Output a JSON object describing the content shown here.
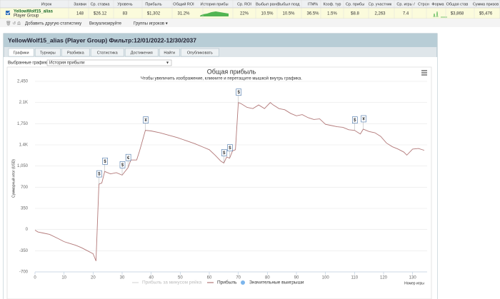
{
  "table": {
    "columns": [
      "Игрок",
      "Заявки",
      "Ср. ставка",
      "Уровень",
      "Прибыль",
      "Общий ROI",
      "История прибы",
      "Ср. ROI",
      "Выбыл рано",
      "Выбыл позд",
      "ITM%",
      "Коэф. тур",
      "Ср. прибы",
      "Ср. участник",
      "Ср. игры /",
      "Стран",
      "Форма",
      "Общая став",
      "Сумма призов"
    ],
    "rows": [
      {
        "player": "YellowWolf15_alias",
        "group": "Player Group",
        "cells": [
          "148",
          "$26.12",
          "83",
          "$1,302",
          "31.2%",
          null,
          "22%",
          "10.5%",
          "10.5%",
          "36.5%",
          "1.5%",
          "$8.8",
          "2,263",
          "7.4",
          null,
          null,
          "$3,868",
          "$5,476"
        ]
      }
    ]
  },
  "toolbar": [
    "Добавить другую статистику",
    "Визуализируйте",
    "Группы игроков ▾"
  ],
  "panel": {
    "title": "YellowWolf15_alias (Player Group) Фильтр:12/01/2022-12/30/2037",
    "tabs": [
      "Графики",
      "Турниры",
      "Разбивка",
      "Статистика",
      "Достижения",
      "Найти",
      "Опубликовать"
    ],
    "selector_label": "Выбранные графики:",
    "selector_value": "История прибыли"
  },
  "chart_data": {
    "type": "line",
    "title": "Общая прибыль",
    "subtitle": "Чтобы увеличить изображение, кликните и перетащите мышкой внутрь графика.",
    "y_label": "Суммарный итог (USD)",
    "x_label": "Номер игры",
    "xlim": [
      0,
      135
    ],
    "xticks": [
      0,
      10,
      20,
      30,
      40,
      50,
      60,
      70,
      80,
      90,
      100,
      110,
      120,
      130
    ],
    "ylim": [
      -700,
      2450
    ],
    "yticks": [
      {
        "value": 2450,
        "label": "2,450"
      },
      {
        "value": 2100,
        "label": "2.1K"
      },
      {
        "value": 1750,
        "label": "1,750"
      },
      {
        "value": 1400,
        "label": "1.4K"
      },
      {
        "value": 1050,
        "label": "1,050"
      },
      700,
      350,
      0,
      -350,
      -700
    ],
    "grid": true,
    "series": [
      {
        "name": "Прибыль",
        "color": "#b27878",
        "x": [
          0,
          1,
          3,
          5,
          8,
          10,
          12,
          14,
          16,
          18,
          20,
          21,
          22,
          23,
          24,
          26,
          28,
          30,
          32,
          33,
          35,
          36,
          38,
          40,
          43,
          46,
          49,
          52,
          55,
          58,
          60,
          62,
          64,
          65,
          66,
          67,
          68,
          69,
          70,
          71,
          73,
          75,
          77,
          79,
          81,
          82,
          84,
          86,
          88,
          90,
          92,
          94,
          96,
          98,
          100,
          102,
          104,
          106,
          108,
          110,
          112,
          113,
          115,
          117,
          119,
          121,
          123,
          125,
          127,
          128,
          130,
          132,
          134
        ],
        "values": [
          -10,
          -40,
          -60,
          -80,
          -150,
          -200,
          -230,
          -260,
          -300,
          -350,
          -400,
          -520,
          750,
          770,
          960,
          920,
          940,
          900,
          1020,
          1150,
          1150,
          1300,
          1640,
          1630,
          1600,
          1560,
          1520,
          1470,
          1420,
          1360,
          1320,
          1230,
          1130,
          1100,
          1200,
          1180,
          1300,
          1320,
          2100,
          2080,
          2020,
          2000,
          2060,
          2000,
          2100,
          2060,
          2000,
          1980,
          1920,
          1880,
          1900,
          1850,
          1820,
          1830,
          1740,
          1720,
          1700,
          1690,
          1650,
          1640,
          1580,
          1660,
          1620,
          1600,
          1540,
          1430,
          1370,
          1330,
          1280,
          1230,
          1330,
          1340,
          1310
        ]
      }
    ],
    "legend": [
      {
        "name": "Прибыль за минусом рейка",
        "color": "#d8d8d8"
      },
      {
        "name": "Прибыль",
        "color": "#b27878"
      },
      {
        "name": "Значительные выигрыши",
        "color": "#7cb5ec"
      }
    ],
    "flags": [
      {
        "x": 22,
        "label": "$"
      },
      {
        "x": 24,
        "label": "$"
      },
      {
        "x": 30,
        "label": "$"
      },
      {
        "x": 32,
        "label": "€"
      },
      {
        "x": 38,
        "label": "¥"
      },
      {
        "x": 65,
        "label": "$"
      },
      {
        "x": 67,
        "label": "$"
      },
      {
        "x": 70,
        "label": "$"
      },
      {
        "x": 110,
        "label": "$"
      },
      {
        "x": 113,
        "label": "¥"
      }
    ]
  }
}
